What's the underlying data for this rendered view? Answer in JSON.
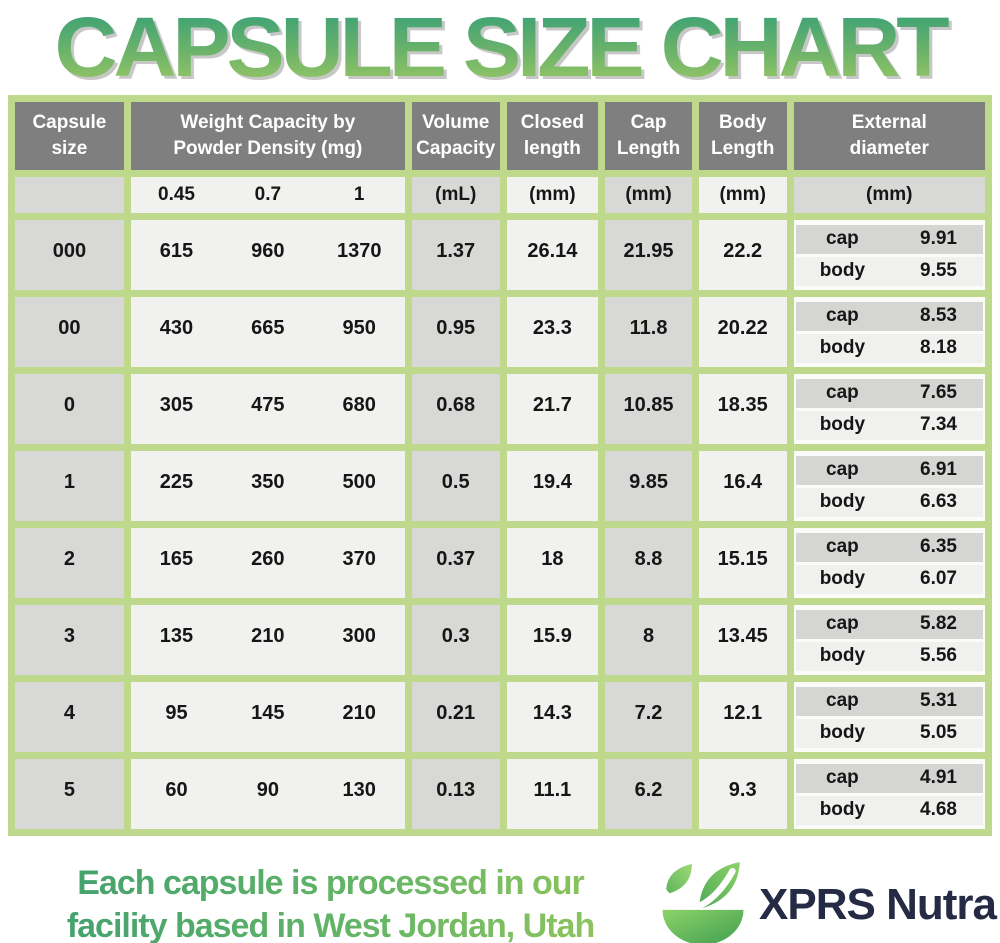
{
  "title": "CAPSULE SIZE CHART",
  "chart_data": {
    "type": "table",
    "title": "CAPSULE SIZE CHART",
    "header": {
      "capsule_size": "Capsule size",
      "weight_capacity": "Weight Capacity by\nPowder Density (mg)",
      "volume_capacity": "Volume\nCapacity",
      "closed_length": "Closed\nlength",
      "cap_length": "Cap\nLength",
      "body_length": "Body\nLength",
      "external_diameter": "External\ndiameter"
    },
    "units": {
      "capsule_size": "",
      "density_045": "0.45",
      "density_07": "0.7",
      "density_1": "1",
      "volume": "(mL)",
      "closed": "(mm)",
      "cap": "(mm)",
      "body": "(mm)",
      "external": "(mm)"
    },
    "row_labels": {
      "cap": "cap",
      "body": "body"
    },
    "rows": [
      {
        "size": "000",
        "weight_045": "615",
        "weight_07": "960",
        "weight_1": "1370",
        "volume": "1.37",
        "closed": "26.14",
        "cap_length": "21.95",
        "body_length": "22.2",
        "cap_diameter": "9.91",
        "body_diameter": "9.55"
      },
      {
        "size": "00",
        "weight_045": "430",
        "weight_07": "665",
        "weight_1": "950",
        "volume": "0.95",
        "closed": "23.3",
        "cap_length": "11.8",
        "body_length": "20.22",
        "cap_diameter": "8.53",
        "body_diameter": "8.18"
      },
      {
        "size": "0",
        "weight_045": "305",
        "weight_07": "475",
        "weight_1": "680",
        "volume": "0.68",
        "closed": "21.7",
        "cap_length": "10.85",
        "body_length": "18.35",
        "cap_diameter": "7.65",
        "body_diameter": "7.34"
      },
      {
        "size": "1",
        "weight_045": "225",
        "weight_07": "350",
        "weight_1": "500",
        "volume": "0.5",
        "closed": "19.4",
        "cap_length": "9.85",
        "body_length": "16.4",
        "cap_diameter": "6.91",
        "body_diameter": "6.63"
      },
      {
        "size": "2",
        "weight_045": "165",
        "weight_07": "260",
        "weight_1": "370",
        "volume": "0.37",
        "closed": "18",
        "cap_length": "8.8",
        "body_length": "15.15",
        "cap_diameter": "6.35",
        "body_diameter": "6.07"
      },
      {
        "size": "3",
        "weight_045": "135",
        "weight_07": "210",
        "weight_1": "300",
        "volume": "0.3",
        "closed": "15.9",
        "cap_length": "8",
        "body_length": "13.45",
        "cap_diameter": "5.82",
        "body_diameter": "5.56"
      },
      {
        "size": "4",
        "weight_045": "95",
        "weight_07": "145",
        "weight_1": "210",
        "volume": "0.21",
        "closed": "14.3",
        "cap_length": "7.2",
        "body_length": "12.1",
        "cap_diameter": "5.31",
        "body_diameter": "5.05"
      },
      {
        "size": "5",
        "weight_045": "60",
        "weight_07": "90",
        "weight_1": "130",
        "volume": "0.13",
        "closed": "11.1",
        "cap_length": "6.2",
        "body_length": "9.3",
        "cap_diameter": "4.91",
        "body_diameter": "4.68"
      }
    ]
  },
  "footer": {
    "line1": "Each capsule is processed in our",
    "line2": "facility based in West Jordan, Utah",
    "brand": "XPRS Nutra"
  },
  "colors": {
    "border_green": "#bed98c",
    "header_gray": "#7f7f7f",
    "cell_gray": "#d8d8d6",
    "cell_light": "#f1f1ef",
    "title_gradient_top": "#37a077",
    "title_gradient_bottom": "#9dca63",
    "footer_gradient_start": "#3d9e6f",
    "footer_gradient_end": "#97c75b",
    "brand_navy": "#252b45",
    "logo_green_light": "#8ed26a",
    "logo_green_dark": "#45a552"
  }
}
